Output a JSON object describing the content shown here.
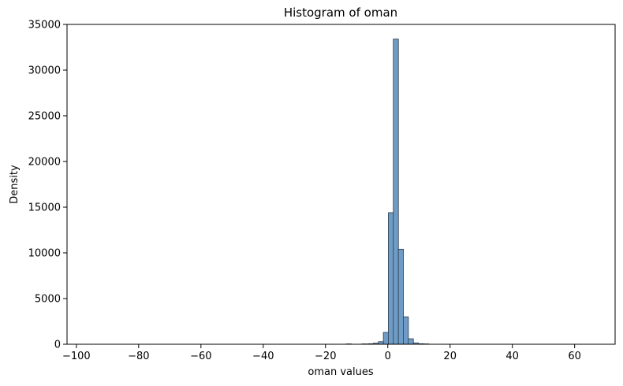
{
  "chart_data": {
    "type": "bar",
    "title": "Histogram of oman",
    "xlabel": "oman values",
    "ylabel": "Density",
    "xlim": [
      -103,
      73
    ],
    "ylim": [
      0,
      35000
    ],
    "xticks": [
      -100,
      -80,
      -60,
      -40,
      -20,
      0,
      20,
      40,
      60
    ],
    "yticks": [
      0,
      5000,
      10000,
      15000,
      20000,
      25000,
      30000,
      35000
    ],
    "grid": false,
    "bin_width": 1.64,
    "bins": [
      {
        "x": -12.5,
        "value": 40
      },
      {
        "x": -7.5,
        "value": 40
      },
      {
        "x": -5.5,
        "value": 60
      },
      {
        "x": -3.8,
        "value": 120
      },
      {
        "x": -2.2,
        "value": 280
      },
      {
        "x": -0.6,
        "value": 1300
      },
      {
        "x": 1.0,
        "value": 14400
      },
      {
        "x": 2.6,
        "value": 33400
      },
      {
        "x": 4.2,
        "value": 10400
      },
      {
        "x": 5.8,
        "value": 3000
      },
      {
        "x": 7.4,
        "value": 600
      },
      {
        "x": 9.0,
        "value": 150
      },
      {
        "x": 10.7,
        "value": 60
      },
      {
        "x": 12.3,
        "value": 40
      }
    ],
    "colors": {
      "bar_fill": "#6f9cc7",
      "bar_edge": "#2b3a4a"
    }
  }
}
